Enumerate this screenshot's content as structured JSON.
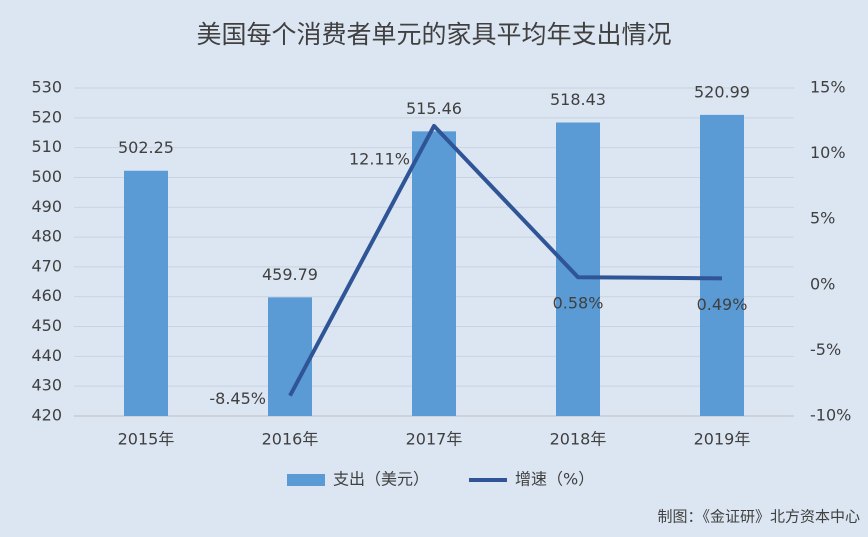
{
  "chart_data": {
    "type": "bar",
    "title": "美国每个消费者单元的家具平均年支出情况",
    "categories": [
      "2015年",
      "2016年",
      "2017年",
      "2018年",
      "2019年"
    ],
    "series": [
      {
        "name": "支出（美元）",
        "type": "bar",
        "color": "#5b9bd5",
        "values": [
          502.25,
          459.79,
          515.46,
          518.43,
          520.99
        ]
      },
      {
        "name": "增速（%）",
        "type": "line",
        "axis": "y2",
        "color": "#2f5597",
        "values": [
          null,
          -8.45,
          12.11,
          0.58,
          0.49
        ],
        "value_labels": [
          null,
          "-8.45%",
          "12.11%",
          "0.58%",
          "0.49%"
        ]
      }
    ],
    "ylim": [
      420,
      530
    ],
    "yticks": [
      420,
      430,
      440,
      450,
      460,
      470,
      480,
      490,
      500,
      510,
      520,
      530
    ],
    "y2lim": [
      -10,
      15
    ],
    "y2ticks": [
      {
        "value": -10,
        "label": "-10%"
      },
      {
        "value": -5,
        "label": "-5%"
      },
      {
        "value": 0,
        "label": "0%"
      },
      {
        "value": 5,
        "label": "5%"
      },
      {
        "value": 10,
        "label": "10%"
      },
      {
        "value": 15,
        "label": "15%"
      }
    ],
    "grid": true,
    "source": "制图：《金证研》北方资本中心"
  }
}
